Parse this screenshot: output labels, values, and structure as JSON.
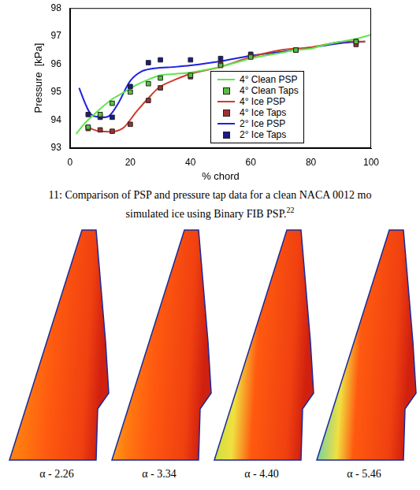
{
  "chart_data": {
    "type": "line",
    "xlabel": "% chord",
    "ylabel": "Pressure  [kPa]",
    "xlim": [
      0,
      100
    ],
    "xticks": [
      0,
      20,
      40,
      60,
      80,
      100
    ],
    "ylim": [
      93,
      98
    ],
    "yticks": [
      93,
      94,
      95,
      96,
      97,
      98
    ],
    "grid": false,
    "legend": "lower right",
    "series": [
      {
        "name": "4° Clean PSP",
        "type": "line",
        "color": "#5ee64a",
        "line_style": "solid",
        "x": [
          2,
          5,
          10,
          14,
          18,
          22,
          25,
          30,
          35,
          40,
          50,
          60,
          70,
          75,
          80,
          85,
          90,
          95,
          100
        ],
        "values": [
          93.5,
          93.9,
          94.4,
          94.75,
          95.0,
          95.25,
          95.4,
          95.6,
          95.65,
          95.7,
          95.9,
          96.2,
          96.4,
          96.5,
          96.55,
          96.7,
          96.8,
          96.9,
          97.05
        ]
      },
      {
        "name": "4° Clean Taps",
        "type": "scatter",
        "color": "#55c040",
        "marker": "square",
        "x": [
          6,
          10,
          14,
          20,
          26,
          30,
          40,
          50,
          60,
          75,
          95
        ],
        "values": [
          93.75,
          94.2,
          94.6,
          95.0,
          95.3,
          95.5,
          95.6,
          95.95,
          96.25,
          96.5,
          96.8
        ]
      },
      {
        "name": "4° Ice PSP",
        "type": "line",
        "color": "#d03a2a",
        "line_style": "solid",
        "x": [
          5,
          8,
          10,
          15,
          18,
          22,
          27,
          30,
          35,
          40,
          50,
          60,
          70,
          80,
          90,
          98
        ],
        "values": [
          93.8,
          93.65,
          93.6,
          93.6,
          93.75,
          94.3,
          94.9,
          95.2,
          95.45,
          95.65,
          95.9,
          96.25,
          96.5,
          96.6,
          96.8,
          96.8
        ]
      },
      {
        "name": "4° Ice Taps",
        "type": "scatter",
        "color": "#a03030",
        "marker": "square",
        "x": [
          6,
          10,
          14,
          20,
          26,
          30,
          40,
          50,
          60,
          75,
          95
        ],
        "values": [
          93.7,
          93.65,
          93.6,
          93.85,
          94.7,
          95.15,
          95.55,
          96.0,
          96.3,
          96.5,
          96.7
        ]
      },
      {
        "name": "2° Ice PSP",
        "type": "line",
        "color": "#2020e0",
        "line_style": "solid",
        "x": [
          3,
          5,
          7,
          10,
          13,
          16,
          20,
          24,
          28,
          35,
          40,
          50,
          60,
          75,
          90,
          98
        ],
        "values": [
          95.15,
          94.6,
          94.2,
          94.1,
          94.15,
          94.6,
          95.4,
          95.75,
          95.85,
          95.9,
          95.95,
          96.1,
          96.3,
          96.5,
          96.75,
          96.8
        ]
      },
      {
        "name": "2° Ice Taps",
        "type": "scatter",
        "color": "#1a1a8a",
        "marker": "square",
        "x": [
          6,
          10,
          14,
          20,
          26,
          30,
          40,
          50,
          60,
          75,
          95
        ],
        "values": [
          94.2,
          94.1,
          94.1,
          95.2,
          96.05,
          96.15,
          96.15,
          96.2,
          96.35,
          96.5,
          96.8
        ]
      }
    ]
  },
  "caption": {
    "lines": [
      "11: Comparison of PSP and pressure tap data for a clean NACA 0012 mo",
      "simulated ice using Binary FIB PSP."
    ],
    "ref": "22"
  },
  "panels": [
    {
      "label": "α - 2.26"
    },
    {
      "label": "α - 3.34"
    },
    {
      "label": "α - 4.40"
    },
    {
      "label": "α - 5.46"
    }
  ]
}
